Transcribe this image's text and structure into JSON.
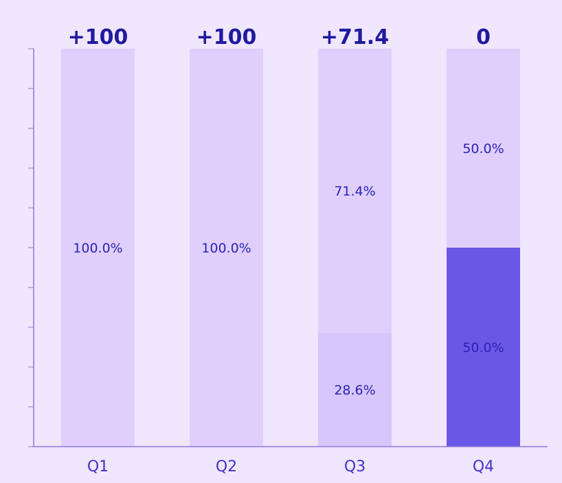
{
  "chart_data": {
    "type": "bar",
    "stacked": true,
    "percent": true,
    "categories": [
      "Q1",
      "Q2",
      "Q3",
      "Q4"
    ],
    "ylim": [
      0,
      100
    ],
    "y_ticks": [
      0,
      10,
      20,
      30,
      40,
      50,
      60,
      70,
      80,
      90,
      100
    ],
    "series": [
      {
        "values": [
          0,
          0,
          28.6,
          50.0
        ],
        "labels": [
          "",
          "",
          "28.6%",
          "50.0%"
        ],
        "colors": [
          "#d7c6fc",
          "#d7c6fc",
          "#d7c6fc",
          "#6b57e6"
        ]
      },
      {
        "values": [
          100.0,
          100.0,
          71.4,
          50.0
        ],
        "labels": [
          "100.0%",
          "100.0%",
          "71.4%",
          "50.0%"
        ],
        "colors": [
          "#e0cffd",
          "#e0cffd",
          "#e0cffd",
          "#e0cffd"
        ]
      }
    ],
    "top_labels": [
      "+100",
      "+100",
      "+71.4",
      "0"
    ],
    "grid": false,
    "legend": "none"
  },
  "colors": {
    "background": "#f0e6fd",
    "axis": "#8a78d6",
    "label_text": "#2a22b8",
    "top_label_text": "#1f1a9e",
    "tick_label_text": "#4034c8"
  }
}
